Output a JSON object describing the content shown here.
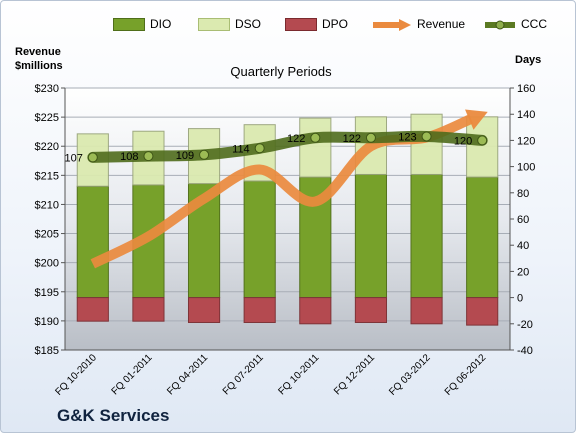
{
  "company": "G&K Services",
  "chart_data": {
    "type": "bar+line",
    "subtitle": "Quarterly Periods",
    "left_axis": {
      "label_line1": "Revenue",
      "label_line2": "$millions",
      "min": 185,
      "max": 230,
      "step": 5,
      "tick_prefix": "$"
    },
    "right_axis": {
      "label": "Days",
      "min": -40,
      "max": 160,
      "step": 20
    },
    "categories": [
      "FQ 10-2010",
      "FQ 01-2011",
      "FQ 04-2011",
      "FQ 07-2011",
      "FQ 10-2011",
      "FQ 12-2011",
      "FQ 03-2012",
      "FQ 06-2012"
    ],
    "series": [
      {
        "name": "DIO",
        "type": "bar",
        "axis": "right",
        "color": "#77a12a",
        "values": [
          85,
          86,
          87,
          89,
          92,
          94,
          94,
          92
        ]
      },
      {
        "name": "DSO",
        "type": "bar",
        "axis": "right",
        "color": "#dbeab0",
        "values": [
          40,
          41,
          42,
          43,
          45,
          44,
          46,
          46
        ]
      },
      {
        "name": "DPO",
        "type": "bar",
        "axis": "right",
        "color": "#b44a50",
        "values": [
          -18,
          -18,
          -19,
          -19,
          -20,
          -19,
          -20,
          -21
        ]
      },
      {
        "name": "Revenue",
        "type": "line",
        "axis": "left",
        "color": "#ea8a3e",
        "values": [
          199.8,
          204.5,
          211.0,
          216.0,
          210.5,
          220.0,
          221.5,
          225.5
        ]
      },
      {
        "name": "CCC",
        "type": "line",
        "axis": "right",
        "color": "#5b7a22",
        "values": [
          107,
          108,
          109,
          114,
          122,
          122,
          123,
          120
        ]
      }
    ]
  }
}
